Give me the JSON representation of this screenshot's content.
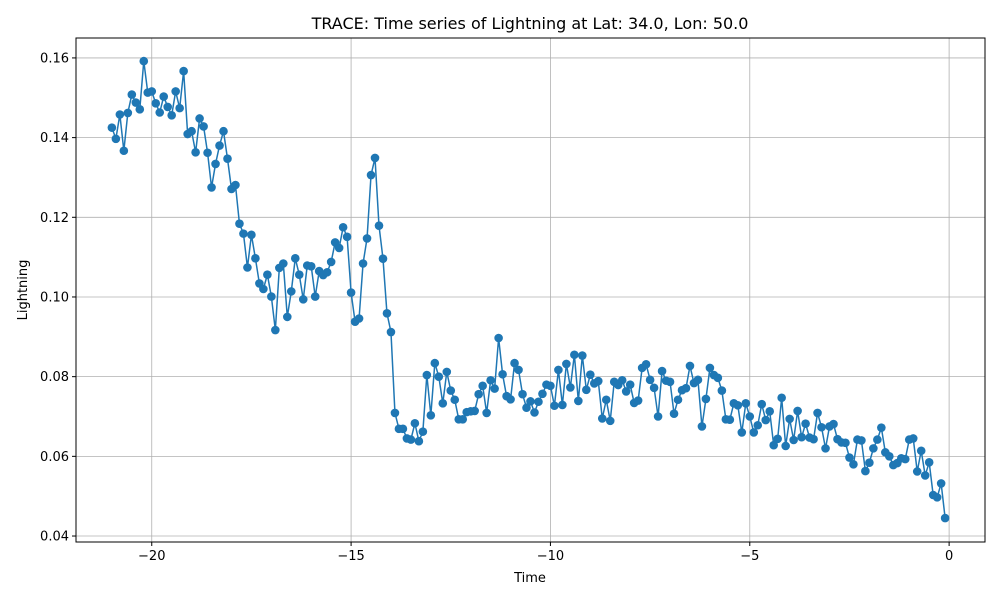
{
  "chart_data": {
    "type": "line",
    "title": "TRACE: Time series of Lightning at Lat: 34.0, Lon: 50.0",
    "xlabel": "Time",
    "ylabel": "Lightning",
    "xlim": [
      -21.9,
      0.9
    ],
    "ylim": [
      0.0385,
      0.165
    ],
    "xticks": [
      -20,
      -15,
      -10,
      -5,
      0
    ],
    "xtick_labels": [
      "−20",
      "−15",
      "−10",
      "−5",
      "0"
    ],
    "yticks": [
      0.04,
      0.06,
      0.08,
      0.1,
      0.12,
      0.14,
      0.16
    ],
    "ytick_labels": [
      "0.04",
      "0.06",
      "0.08",
      "0.10",
      "0.12",
      "0.14",
      "0.16"
    ],
    "grid": true,
    "line_color": "#1f77b4",
    "marker": "circle",
    "series": [
      {
        "x_start": -21.0,
        "x_step": 0.1,
        "values": [
          0.1425,
          0.1397,
          0.1458,
          0.1367,
          0.1462,
          0.1508,
          0.1488,
          0.1471,
          0.1592,
          0.1513,
          0.1516,
          0.1486,
          0.1463,
          0.1503,
          0.1477,
          0.1456,
          0.1516,
          0.1474,
          0.1567,
          0.1409,
          0.1416,
          0.1363,
          0.1448,
          0.1428,
          0.1362,
          0.1275,
          0.1334,
          0.138,
          0.1416,
          0.1347,
          0.1271,
          0.1281,
          0.1184,
          0.1159,
          0.1074,
          0.1156,
          0.1097,
          0.1034,
          0.102,
          0.1056,
          0.1001,
          0.0917,
          0.1073,
          0.1084,
          0.095,
          0.1014,
          0.1097,
          0.1056,
          0.0994,
          0.1079,
          0.1077,
          0.1001,
          0.1065,
          0.1055,
          0.1062,
          0.1088,
          0.1137,
          0.1123,
          0.1175,
          0.1151,
          0.1011,
          0.0938,
          0.0946,
          0.1084,
          0.1147,
          0.1306,
          0.1349,
          0.1179,
          0.1096,
          0.0959,
          0.0912,
          0.0709,
          0.0669,
          0.0669,
          0.0645,
          0.0642,
          0.0683,
          0.0638,
          0.0662,
          0.0804,
          0.0703,
          0.0834,
          0.08,
          0.0733,
          0.0812,
          0.0765,
          0.0742,
          0.0693,
          0.0693,
          0.0711,
          0.0713,
          0.0714,
          0.0756,
          0.0777,
          0.0709,
          0.0791,
          0.077,
          0.0897,
          0.0806,
          0.0751,
          0.0743,
          0.0834,
          0.0817,
          0.0756,
          0.0722,
          0.0738,
          0.071,
          0.0737,
          0.0757,
          0.078,
          0.0777,
          0.0727,
          0.0817,
          0.0729,
          0.0832,
          0.0773,
          0.0855,
          0.0739,
          0.0853,
          0.0767,
          0.0805,
          0.0783,
          0.0789,
          0.0695,
          0.0742,
          0.0689,
          0.0787,
          0.0779,
          0.0791,
          0.0763,
          0.078,
          0.0734,
          0.074,
          0.0822,
          0.0831,
          0.0792,
          0.0772,
          0.07,
          0.0814,
          0.079,
          0.0787,
          0.0707,
          0.0742,
          0.0766,
          0.0771,
          0.0827,
          0.0784,
          0.0792,
          0.0675,
          0.0744,
          0.0822,
          0.0804,
          0.0797,
          0.0765,
          0.0693,
          0.0692,
          0.0733,
          0.0728,
          0.066,
          0.0733,
          0.07,
          0.066,
          0.0678,
          0.0731,
          0.0691,
          0.0713,
          0.0628,
          0.0644,
          0.0747,
          0.0626,
          0.0694,
          0.0641,
          0.0714,
          0.0648,
          0.0682,
          0.0647,
          0.0643,
          0.0709,
          0.0673,
          0.062,
          0.0675,
          0.0681,
          0.0643,
          0.0635,
          0.0634,
          0.0597,
          0.058,
          0.0642,
          0.064,
          0.0563,
          0.0584,
          0.062,
          0.0642,
          0.0672,
          0.061,
          0.06,
          0.0578,
          0.0583,
          0.0595,
          0.0593,
          0.0642,
          0.0645,
          0.0562,
          0.0614,
          0.0552,
          0.0585,
          0.0503,
          0.0497,
          0.0532,
          0.0445
        ]
      }
    ]
  }
}
